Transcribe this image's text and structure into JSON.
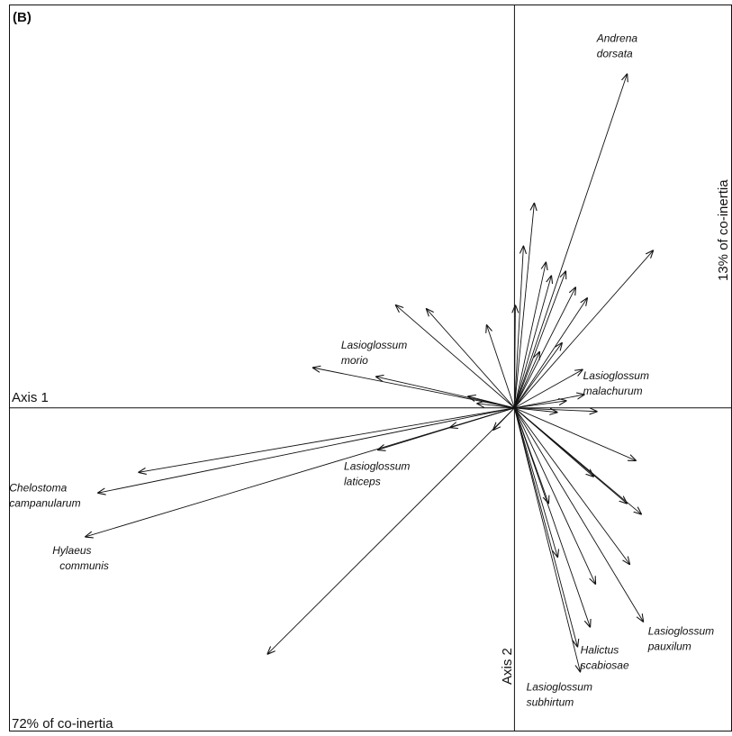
{
  "chart_data": {
    "type": "biplot",
    "title": "(B)",
    "x_label": "Axis 1",
    "y_label": "Axis 2",
    "x_inertia": "72% of co-inertia",
    "y_inertia": "13% of co-inertia",
    "xlim": [
      -5.6,
      2.4
    ],
    "ylim": [
      -3.6,
      4.5
    ],
    "color": "#111111",
    "vectors": [
      {
        "x": 1.25,
        "y": 3.73,
        "label": [
          "Andrena",
          "dorsata"
        ]
      },
      {
        "x": 1.54,
        "y": 1.76
      },
      {
        "x": 0.22,
        "y": 2.29
      },
      {
        "x": 0.1,
        "y": 1.81
      },
      {
        "x": 0.35,
        "y": 1.63
      },
      {
        "x": 0.41,
        "y": 1.48
      },
      {
        "x": 0.57,
        "y": 1.53
      },
      {
        "x": 0.68,
        "y": 1.35
      },
      {
        "x": 0.81,
        "y": 1.23
      },
      {
        "x": 0.28,
        "y": 0.63
      },
      {
        "x": 0.53,
        "y": 0.73
      },
      {
        "x": 0.76,
        "y": 0.43
      },
      {
        "x": 0.78,
        "y": 0.15,
        "label": [
          "Lasioglossum",
          "malachurum"
        ]
      },
      {
        "x": 0.58,
        "y": 0.08
      },
      {
        "x": 0.92,
        "y": -0.04
      },
      {
        "x": 0.48,
        "y": -0.05
      },
      {
        "x": -1.32,
        "y": 1.15
      },
      {
        "x": -0.98,
        "y": 1.11
      },
      {
        "x": -0.31,
        "y": 0.93
      },
      {
        "x": 0.01,
        "y": 1.15
      },
      {
        "x": -2.24,
        "y": 0.45,
        "label": [
          "Lasioglossum",
          "morio"
        ]
      },
      {
        "x": -1.54,
        "y": 0.35
      },
      {
        "x": -0.52,
        "y": 0.13
      },
      {
        "x": -0.42,
        "y": 0.05
      },
      {
        "x": -4.17,
        "y": -0.72
      },
      {
        "x": -4.62,
        "y": -0.95,
        "label": [
          "Chelostoma",
          "campanularum"
        ]
      },
      {
        "x": -4.76,
        "y": -1.44,
        "label": [
          "Hylaeus",
          "communis"
        ]
      },
      {
        "x": -1.52,
        "y": -0.47,
        "label": [
          "Lasioglossum",
          "laticeps"
        ]
      },
      {
        "x": -0.72,
        "y": -0.22
      },
      {
        "x": -2.74,
        "y": -2.75
      },
      {
        "x": -0.24,
        "y": -0.25
      },
      {
        "x": 1.35,
        "y": -0.59
      },
      {
        "x": 1.25,
        "y": -1.07
      },
      {
        "x": 1.41,
        "y": -1.19
      },
      {
        "x": 1.28,
        "y": -1.75
      },
      {
        "x": 1.43,
        "y": -2.39,
        "label": [
          "Lasioglossum",
          "pauxilum"
        ]
      },
      {
        "x": 0.84,
        "y": -2.45,
        "label": [
          "Halictus",
          "scabiosae"
        ]
      },
      {
        "x": 0.9,
        "y": -1.97
      },
      {
        "x": 0.73,
        "y": -2.95,
        "label": [
          "Lasioglossum",
          "subhirtum"
        ]
      },
      {
        "x": 0.7,
        "y": -2.67
      },
      {
        "x": 0.48,
        "y": -1.67
      },
      {
        "x": 0.38,
        "y": -1.07
      },
      {
        "x": 0.88,
        "y": -0.77
      }
    ]
  }
}
